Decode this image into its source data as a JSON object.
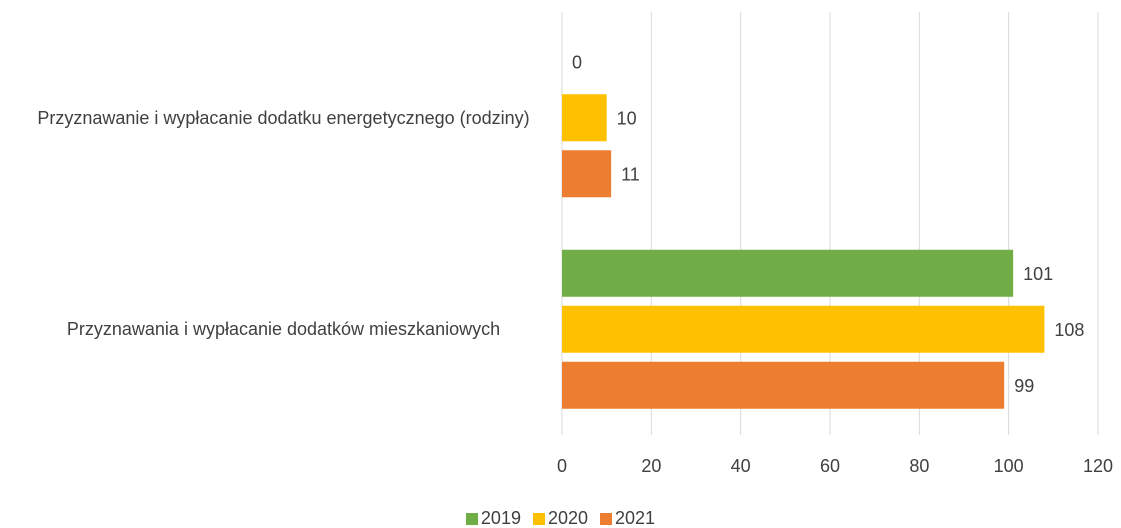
{
  "chart_data": {
    "type": "hbar",
    "categories": [
      "Przyznawanie i wypłacanie dodatku energetycznego (rodziny)",
      "Przyznawania i wypłacanie dodatków mieszkaniowych"
    ],
    "series": [
      {
        "name": "2019",
        "color": "#70ad47",
        "values": [
          0,
          101
        ]
      },
      {
        "name": "2020",
        "color": "#ffc000",
        "values": [
          10,
          108
        ]
      },
      {
        "name": "2021",
        "color": "#ed7d31",
        "values": [
          11,
          99
        ]
      }
    ],
    "xlim": [
      0,
      120
    ],
    "xticks": [
      0,
      20,
      40,
      60,
      80,
      100,
      120
    ],
    "grid": true,
    "legend": "bottom"
  }
}
